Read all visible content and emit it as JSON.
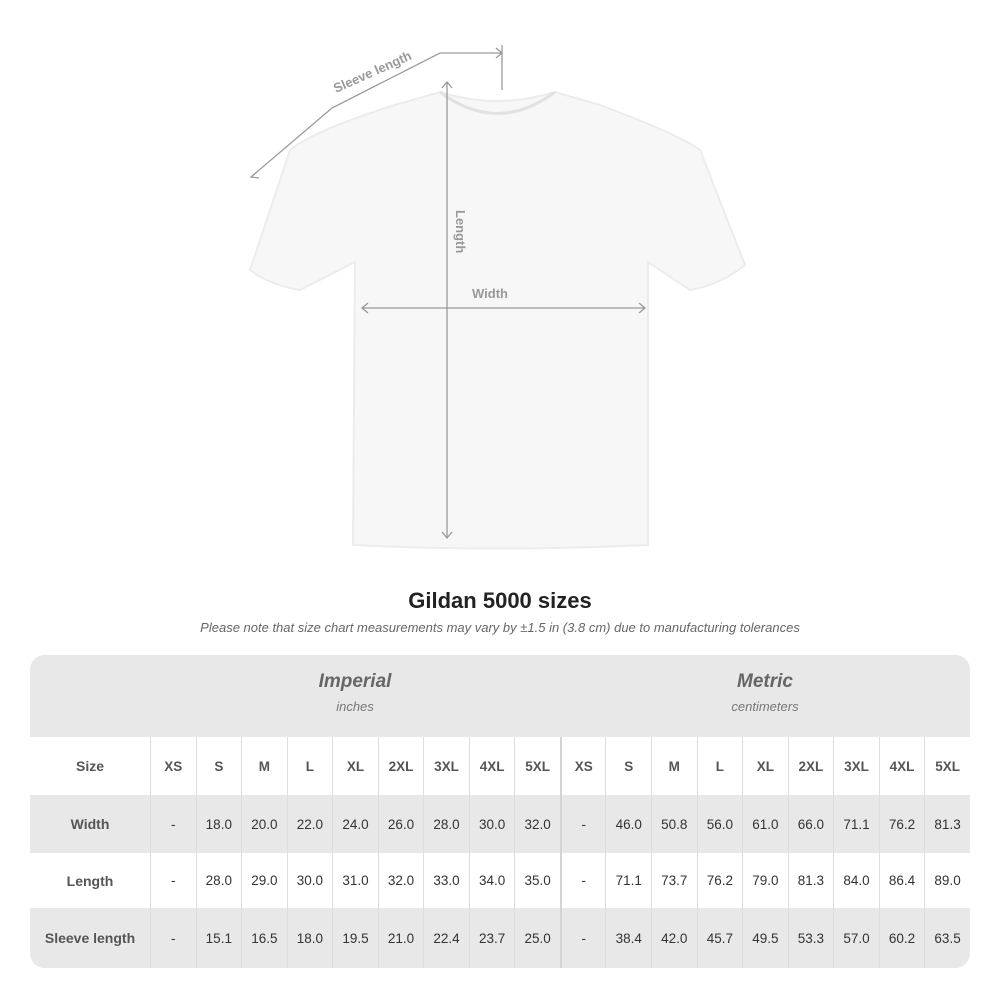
{
  "diagram": {
    "sleeve_label": "Sleeve length",
    "length_label": "Length",
    "width_label": "Width"
  },
  "title": "Gildan 5000 sizes",
  "note": "Please note that size chart measurements may vary by ±1.5 in (3.8 cm) due to manufacturing tolerances",
  "table": {
    "imperial": {
      "name": "Imperial",
      "unit": "inches"
    },
    "metric": {
      "name": "Metric",
      "unit": "centimeters"
    },
    "size_label": "Size",
    "sizes": [
      "XS",
      "S",
      "M",
      "L",
      "XL",
      "2XL",
      "3XL",
      "4XL",
      "5XL",
      "XS",
      "S",
      "M",
      "L",
      "XL",
      "2XL",
      "3XL",
      "4XL",
      "5XL"
    ],
    "rows": [
      {
        "label": "Width",
        "values": [
          "-",
          "18.0",
          "20.0",
          "22.0",
          "24.0",
          "26.0",
          "28.0",
          "30.0",
          "32.0",
          "-",
          "46.0",
          "50.8",
          "56.0",
          "61.0",
          "66.0",
          "71.1",
          "76.2",
          "81.3"
        ]
      },
      {
        "label": "Length",
        "values": [
          "-",
          "28.0",
          "29.0",
          "30.0",
          "31.0",
          "32.0",
          "33.0",
          "34.0",
          "35.0",
          "-",
          "71.1",
          "73.7",
          "76.2",
          "79.0",
          "81.3",
          "84.0",
          "86.4",
          "89.0"
        ]
      },
      {
        "label": "Sleeve length",
        "values": [
          "-",
          "15.1",
          "16.5",
          "18.0",
          "19.5",
          "21.0",
          "22.4",
          "23.7",
          "25.0",
          "-",
          "38.4",
          "42.0",
          "45.7",
          "49.5",
          "53.3",
          "57.0",
          "60.2",
          "63.5"
        ]
      }
    ]
  }
}
